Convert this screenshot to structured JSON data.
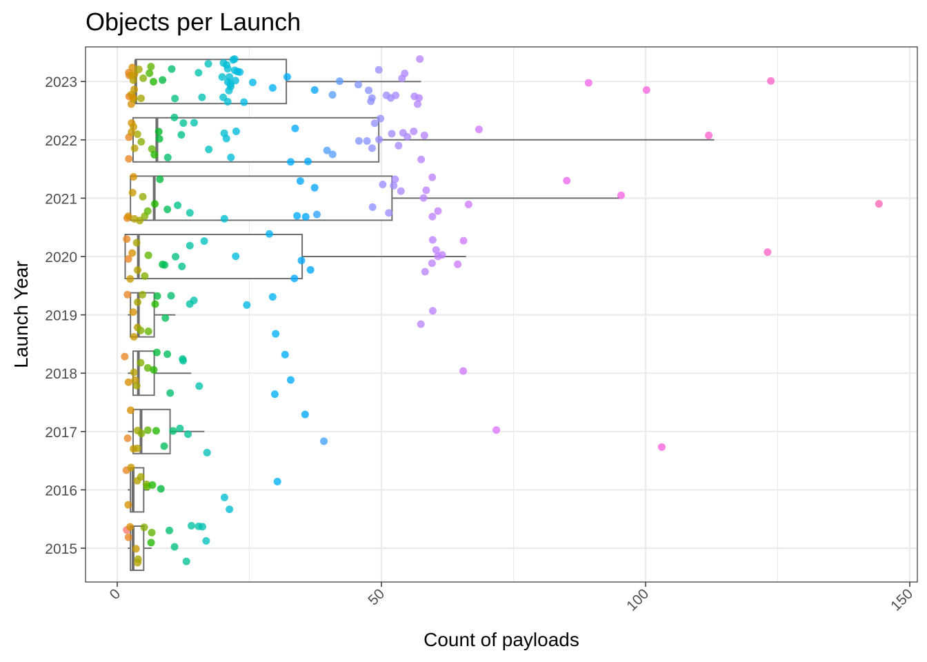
{
  "chart_data": {
    "type": "boxplot_jitter",
    "title": "Objects per Launch",
    "xlabel": "Count of payloads",
    "ylabel": "Launch Year",
    "xlim": [
      -5,
      150
    ],
    "x_ticks": [
      0,
      50,
      100,
      150
    ],
    "y_categories": [
      "2015",
      "2016",
      "2017",
      "2018",
      "2019",
      "2020",
      "2021",
      "2022",
      "2023"
    ],
    "grid": true,
    "legend": "none",
    "boxes": [
      {
        "year": "2015",
        "min": 2,
        "q1": 2.5,
        "median": 3,
        "q3": 5,
        "max": 6.5
      },
      {
        "year": "2016",
        "min": 2,
        "q1": 2.5,
        "median": 3,
        "q3": 5,
        "max": 6
      },
      {
        "year": "2017",
        "min": 2,
        "q1": 3,
        "median": 4.5,
        "q3": 10,
        "max": 16.5
      },
      {
        "year": "2018",
        "min": 2,
        "q1": 3,
        "median": 4,
        "q3": 7,
        "max": 14
      },
      {
        "year": "2019",
        "min": 2,
        "q1": 2.5,
        "median": 4,
        "q3": 7,
        "max": 11
      },
      {
        "year": "2020",
        "min": 1.5,
        "q1": 1.5,
        "median": 4,
        "q3": 35,
        "max": 66
      },
      {
        "year": "2021",
        "min": 2.5,
        "q1": 2.5,
        "median": 7,
        "q3": 52,
        "max": 95
      },
      {
        "year": "2022",
        "min": 3,
        "q1": 3,
        "median": 7.5,
        "q3": 49.5,
        "max": 113
      },
      {
        "year": "2023",
        "min": 3.5,
        "q1": 3.5,
        "median": 3.5,
        "q3": 32,
        "max": 57.5
      }
    ],
    "points": [
      {
        "year": "2023",
        "x": [
          2,
          2.5,
          3,
          3.5,
          2,
          3,
          2.5,
          4,
          3,
          2.5,
          3.5,
          2,
          3,
          4,
          5,
          6,
          6.5,
          7,
          8,
          10,
          11,
          15,
          16,
          17,
          20,
          21,
          22,
          20,
          21,
          22,
          21,
          22,
          23,
          21,
          22,
          20,
          21,
          22,
          21,
          23,
          24,
          26,
          21,
          30,
          32,
          37,
          41,
          41.5,
          46,
          48,
          47.5,
          48.5,
          50,
          51,
          52,
          53,
          54,
          55,
          56,
          56.5,
          57,
          57.5,
          89.5,
          100,
          123.5
        ]
      },
      {
        "year": "2022",
        "x": [
          2,
          2.5,
          3,
          2,
          3.5,
          4,
          3,
          5,
          6,
          7,
          7.5,
          8,
          10,
          11,
          12,
          13,
          15,
          17,
          20,
          21,
          22,
          22,
          33,
          34,
          36,
          40,
          41,
          46,
          47,
          48,
          49,
          49.5,
          50,
          52,
          53,
          54,
          55,
          56,
          57,
          58,
          68,
          112.5
        ]
      },
      {
        "year": "2021",
        "x": [
          2,
          2.5,
          3,
          2.5,
          3.5,
          4,
          4.5,
          5,
          6,
          7,
          8,
          9,
          12,
          14,
          20,
          34,
          35,
          36,
          37,
          38,
          48,
          50,
          51,
          52,
          53,
          54,
          58,
          59,
          59.5,
          60,
          61,
          66.5,
          85,
          95,
          144
        ]
      },
      {
        "year": "2020",
        "x": [
          2,
          2,
          2.5,
          3,
          3.5,
          4,
          5,
          6,
          8,
          9,
          11,
          12,
          14,
          17,
          22,
          29,
          34,
          34.5,
          36,
          58,
          59,
          59.5,
          60,
          60.5,
          61,
          65,
          66,
          122.5
        ]
      },
      {
        "year": "2019",
        "x": [
          2,
          2.5,
          3,
          3.5,
          4,
          4.5,
          5,
          6,
          7,
          8,
          9,
          10,
          14,
          15,
          25,
          29,
          30,
          58,
          59.5
        ]
      },
      {
        "year": "2018",
        "x": [
          2,
          2.5,
          3,
          3.5,
          4,
          5,
          6,
          7,
          8,
          9,
          10,
          12,
          13,
          15,
          30,
          32,
          33,
          65.5
        ]
      },
      {
        "year": "2017",
        "x": [
          2,
          2.5,
          3,
          3.5,
          4,
          5,
          6,
          7,
          9,
          10,
          12,
          13,
          16.5,
          35,
          39,
          72,
          103.5
        ]
      },
      {
        "year": "2016",
        "x": [
          2,
          2.5,
          3,
          3.5,
          4,
          5,
          6,
          7,
          8,
          20,
          21,
          30
        ]
      },
      {
        "year": "2015",
        "x": [
          1.5,
          2,
          2.5,
          3,
          3.5,
          4,
          5,
          6,
          7,
          10,
          11,
          13,
          14,
          15,
          16,
          17
        ]
      }
    ]
  }
}
